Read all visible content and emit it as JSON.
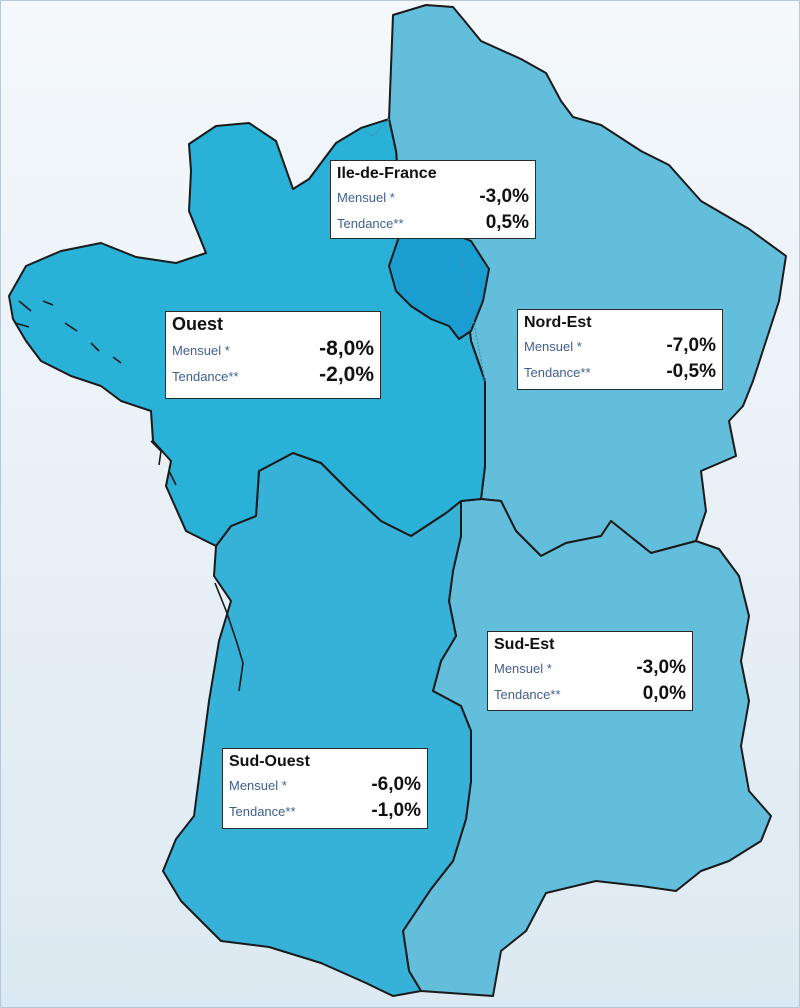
{
  "colors": {
    "ouest": "#29b1d8",
    "ile_de_france": "#1a9dd1",
    "nord_est": "#63bedb",
    "sud_ouest": "#36b2d8",
    "sud_est": "#63bedb",
    "border": "#1a1a1a"
  },
  "regions": [
    {
      "key": "ile_de_france",
      "name": "Ile-de-France",
      "monthly_label": "Mensuel *",
      "monthly_value": "-3,0%",
      "trend_label": "Tendance**",
      "trend_value": "0,5%"
    },
    {
      "key": "ouest",
      "name": "Ouest",
      "monthly_label": "Mensuel *",
      "monthly_value": "-8,0%",
      "trend_label": "Tendance**",
      "trend_value": "-2,0%"
    },
    {
      "key": "nord_est",
      "name": "Nord-Est",
      "monthly_label": "Mensuel *",
      "monthly_value": "-7,0%",
      "trend_label": "Tendance**",
      "trend_value": "-0,5%"
    },
    {
      "key": "sud_est",
      "name": "Sud-Est",
      "monthly_label": "Mensuel *",
      "monthly_value": "-3,0%",
      "trend_label": "Tendance**",
      "trend_value": "0,0%"
    },
    {
      "key": "sud_ouest",
      "name": "Sud-Ouest",
      "monthly_label": "Mensuel *",
      "monthly_value": "-6,0%",
      "trend_label": "Tendance**",
      "trend_value": "-1,0%"
    }
  ]
}
